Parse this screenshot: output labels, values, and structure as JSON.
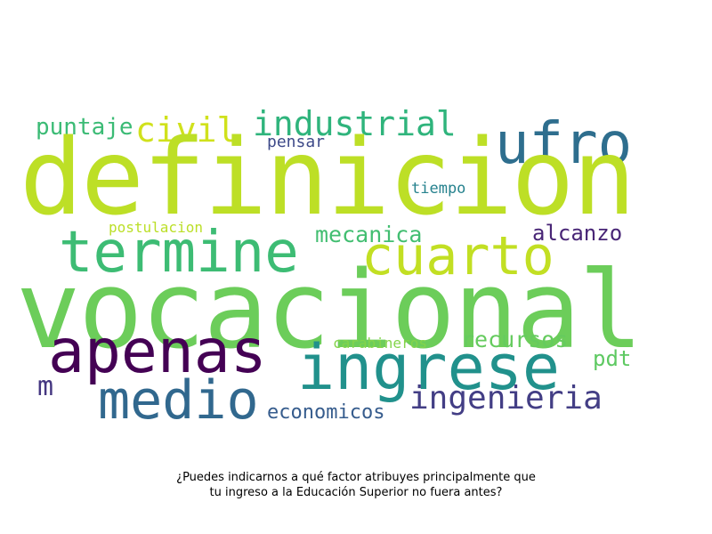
{
  "wordcloud": {
    "words": {
      "definicion": "definicion",
      "vocacional": "vocacional",
      "ufro": "ufro",
      "industrial": "industrial",
      "civil": "civil",
      "puntaje": "puntaje",
      "pensar": "pensar",
      "tiempo": "tiempo",
      "termine": "termine",
      "cuarto": "cuarto",
      "postulacion": "postulacion",
      "mecanica": "mecanica",
      "alcanzo": "alcanzo",
      "apenas": "apenas",
      "ingrese": "ingrese",
      "carabineros": "carabineros",
      "recursos": "recursos",
      "pdt": "pdt",
      "m": "m",
      "medio": "medio",
      "ingenieria": "ingenieria",
      "economicos": "economicos"
    }
  },
  "caption": {
    "line1": "¿Puedes indicarnos a qué factor atribuyes principalmente que",
    "line2": "tu ingreso a la Educación Superior no fuera antes?"
  }
}
